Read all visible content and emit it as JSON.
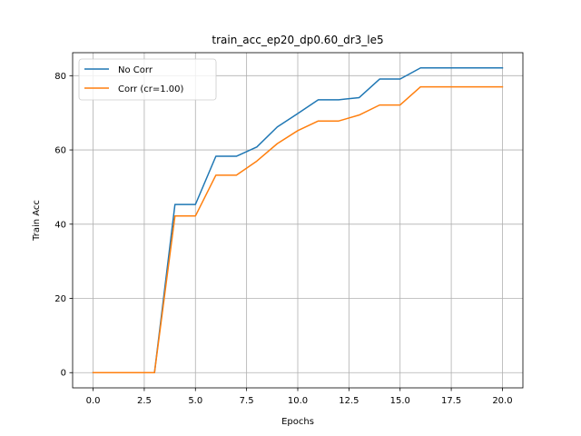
{
  "chart_data": {
    "type": "line",
    "title": "train_acc_ep20_dp0.60_dr3_le5",
    "xlabel": "Epochs",
    "ylabel": "Train Acc",
    "xlim": [
      -1.0,
      21.0
    ],
    "ylim": [
      -4.1,
      86.2
    ],
    "xticks": [
      0.0,
      2.5,
      5.0,
      7.5,
      10.0,
      12.5,
      15.0,
      17.5,
      20.0
    ],
    "xtick_labels": [
      "0.0",
      "2.5",
      "5.0",
      "7.5",
      "10.0",
      "12.5",
      "15.0",
      "17.5",
      "20.0"
    ],
    "yticks": [
      0,
      20,
      40,
      60,
      80
    ],
    "ytick_labels": [
      "0",
      "20",
      "40",
      "60",
      "80"
    ],
    "grid": true,
    "legend_position": "upper-left",
    "x": [
      0,
      1,
      2,
      3,
      4,
      5,
      6,
      7,
      8,
      9,
      10,
      11,
      12,
      13,
      14,
      15,
      16,
      17,
      18,
      19,
      20
    ],
    "series": [
      {
        "name": "No Corr",
        "color": "#1f77b4",
        "values": [
          0,
          0,
          0,
          0,
          45.3,
          45.3,
          58.3,
          58.3,
          60.8,
          66.2,
          69.8,
          73.5,
          73.5,
          74.1,
          79.1,
          79.1,
          82.1,
          82.1,
          82.1,
          82.1,
          82.1
        ]
      },
      {
        "name": "Corr (cr=1.00)",
        "color": "#ff7f0e",
        "values": [
          0,
          0,
          0,
          0,
          42.2,
          42.2,
          53.2,
          53.2,
          57.0,
          61.7,
          65.2,
          67.8,
          67.8,
          69.4,
          72.1,
          72.1,
          77.0,
          77.0,
          77.0,
          77.0,
          77.0
        ]
      }
    ]
  }
}
